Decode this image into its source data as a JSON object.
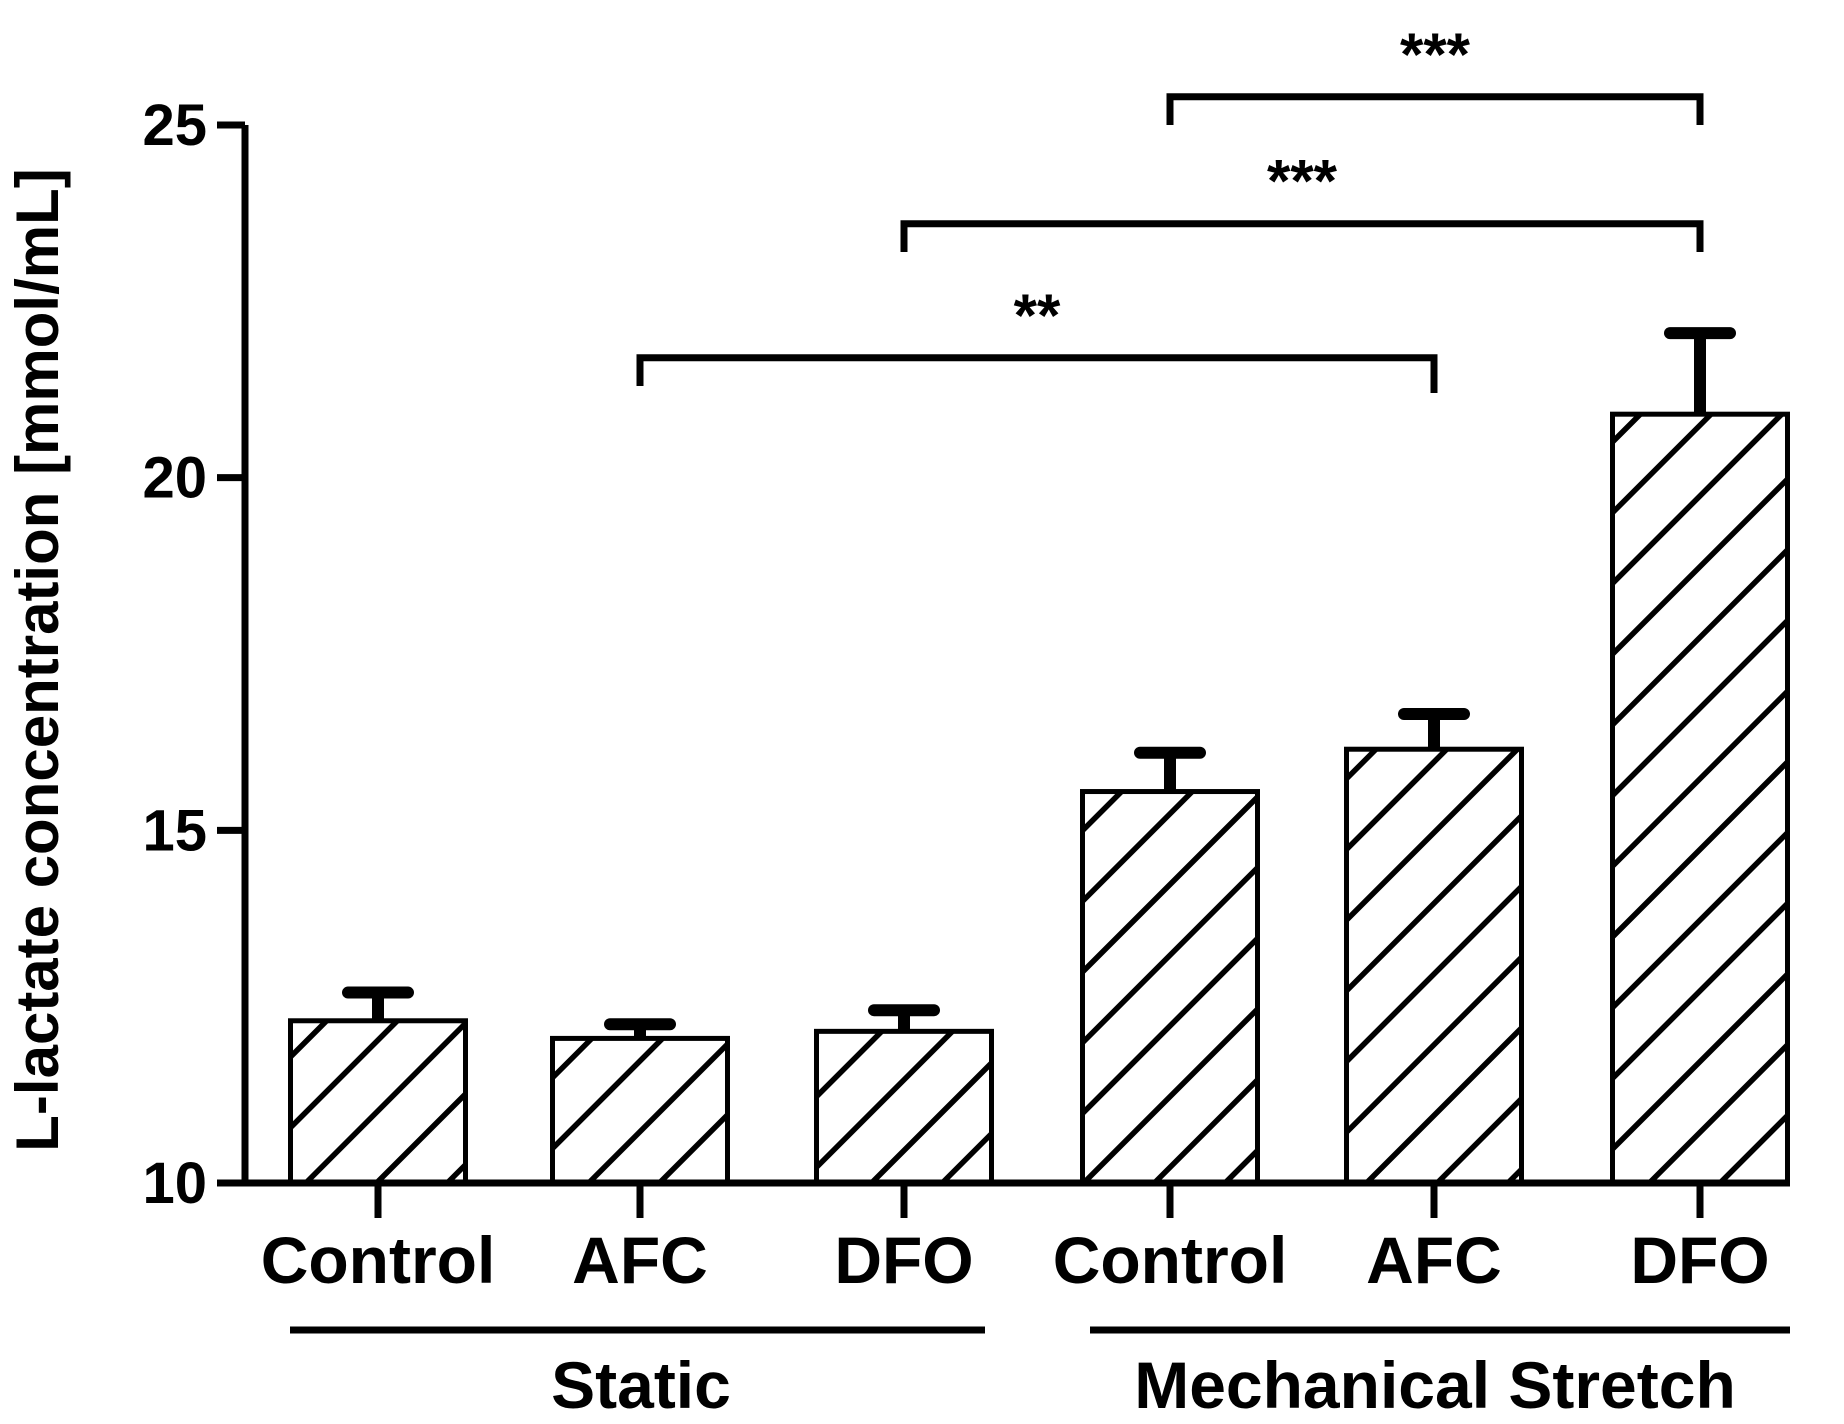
{
  "chart_data": {
    "type": "bar",
    "title": "",
    "xlabel": "",
    "ylabel": "L-lactate concentration [mmol/mL]",
    "ylim": [
      10,
      25
    ],
    "yticks": [
      10,
      15,
      20,
      25
    ],
    "categories": [
      "Control",
      "AFC",
      "DFO",
      "Control",
      "AFC",
      "DFO"
    ],
    "values": [
      12.3,
      12.05,
      12.15,
      15.55,
      16.15,
      20.9
    ],
    "errors": [
      0.4,
      0.2,
      0.3,
      0.55,
      0.5,
      1.15
    ],
    "groups": [
      {
        "name": "Static",
        "from": 0,
        "to": 2
      },
      {
        "name": "Mechanical Stretch",
        "from": 3,
        "to": 5
      }
    ],
    "fill_pattern": "diagonal-hatch",
    "bar_color": "#ffffff",
    "line_color": "#000000",
    "significance": [
      {
        "from": 1,
        "to": 4,
        "label": "**",
        "level": 21.7,
        "left_end": 21.3,
        "right_end": 21.2
      },
      {
        "from": 2,
        "to": 5,
        "label": "***",
        "level": 23.6,
        "left_end": 23.2,
        "right_end": 23.2
      },
      {
        "from": 3,
        "to": 5,
        "label": "***",
        "level": 25.4,
        "left_end": 25.0,
        "right_end": 25.0
      }
    ]
  }
}
